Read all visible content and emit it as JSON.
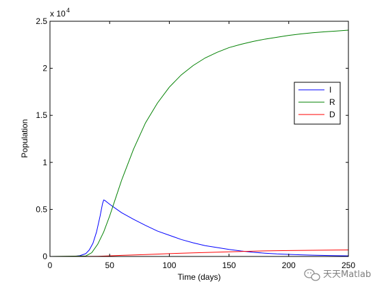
{
  "chart_data": {
    "type": "line",
    "xlabel": "Time (days)",
    "ylabel": "Population",
    "y_exponent_label": "x 10",
    "y_exponent": "4",
    "xlim": [
      0,
      250
    ],
    "ylim": [
      0,
      25000
    ],
    "x_ticks": [
      "0",
      "50",
      "100",
      "150",
      "200",
      "250"
    ],
    "y_ticks": [
      "0",
      "0.5",
      "1",
      "1.5",
      "2",
      "2.5"
    ],
    "grid": false,
    "legend_position": "right",
    "series": [
      {
        "name": "I",
        "color": "#0000ff",
        "x": [
          0,
          20,
          25,
          30,
          33,
          36,
          39,
          42,
          44,
          45,
          46,
          48,
          50,
          55,
          60,
          70,
          80,
          90,
          100,
          110,
          120,
          130,
          140,
          150,
          160,
          170,
          180,
          190,
          200,
          210,
          220,
          230,
          240,
          250
        ],
        "y": [
          0,
          10,
          80,
          300,
          700,
          1400,
          2600,
          4300,
          5600,
          6000,
          5950,
          5750,
          5550,
          5100,
          4650,
          3950,
          3300,
          2700,
          2250,
          1800,
          1450,
          1150,
          950,
          750,
          580,
          450,
          350,
          270,
          220,
          170,
          140,
          110,
          80,
          60
        ]
      },
      {
        "name": "R",
        "color": "#008000",
        "x": [
          0,
          30,
          35,
          40,
          45,
          50,
          55,
          60,
          70,
          80,
          90,
          100,
          110,
          120,
          130,
          140,
          150,
          160,
          170,
          180,
          190,
          200,
          210,
          220,
          230,
          240,
          250
        ],
        "y": [
          0,
          50,
          400,
          1300,
          2600,
          4300,
          6200,
          8100,
          11400,
          14200,
          16300,
          18000,
          19300,
          20300,
          21100,
          21700,
          22200,
          22550,
          22850,
          23100,
          23300,
          23500,
          23650,
          23780,
          23880,
          23960,
          24050
        ]
      },
      {
        "name": "D",
        "color": "#ff0000",
        "x": [
          0,
          30,
          40,
          50,
          60,
          80,
          100,
          120,
          140,
          160,
          180,
          200,
          220,
          240,
          250
        ],
        "y": [
          0,
          5,
          20,
          60,
          120,
          200,
          300,
          380,
          460,
          530,
          590,
          630,
          660,
          680,
          690
        ]
      }
    ]
  },
  "watermark": {
    "text": "天天Matlab",
    "icon": "wechat-icon"
  }
}
